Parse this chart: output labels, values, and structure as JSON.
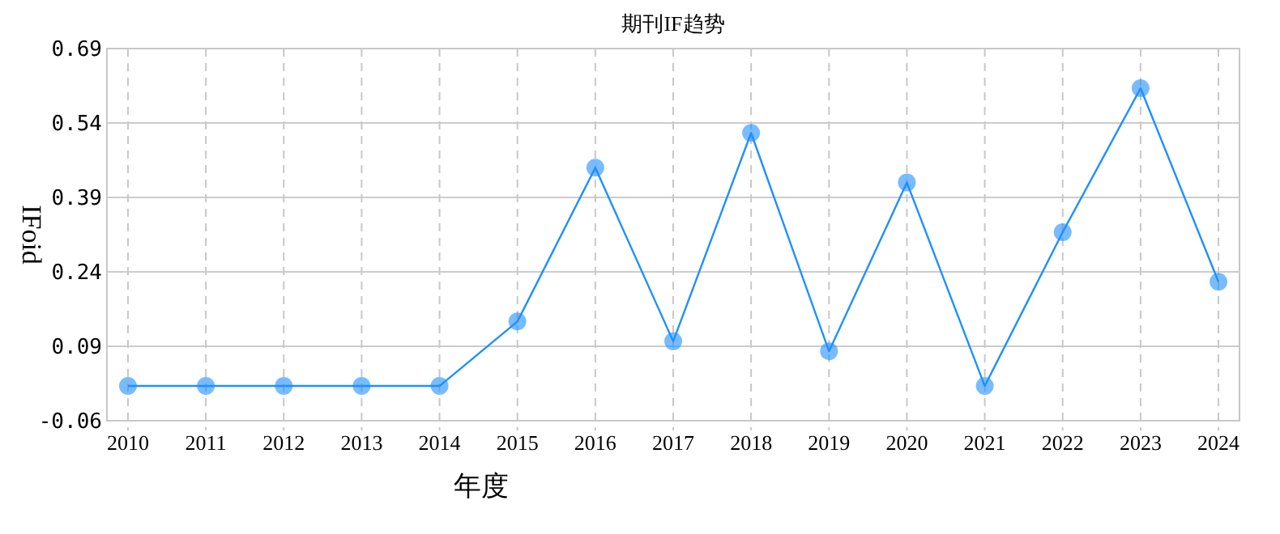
{
  "chart_data": {
    "type": "line",
    "title": "期刊IF趋势",
    "xlabel": "年度",
    "ylabel": "IFoid",
    "categories": [
      "2010",
      "2011",
      "2012",
      "2013",
      "2014",
      "2015",
      "2016",
      "2017",
      "2018",
      "2019",
      "2020",
      "2021",
      "2022",
      "2023",
      "2024"
    ],
    "series": [
      {
        "color": "#1e90ff",
        "values": [
          0.01,
          0.01,
          0.01,
          0.01,
          0.01,
          0.14,
          0.45,
          0.1,
          0.52,
          0.08,
          0.42,
          0.01,
          0.32,
          0.61,
          0.22
        ]
      }
    ],
    "ylim": [
      -0.06,
      0.69
    ],
    "yticks": [
      -0.06,
      0.09,
      0.24,
      0.39,
      0.54,
      0.69
    ],
    "grid": true,
    "marker": "circle",
    "line_style": "solid"
  }
}
